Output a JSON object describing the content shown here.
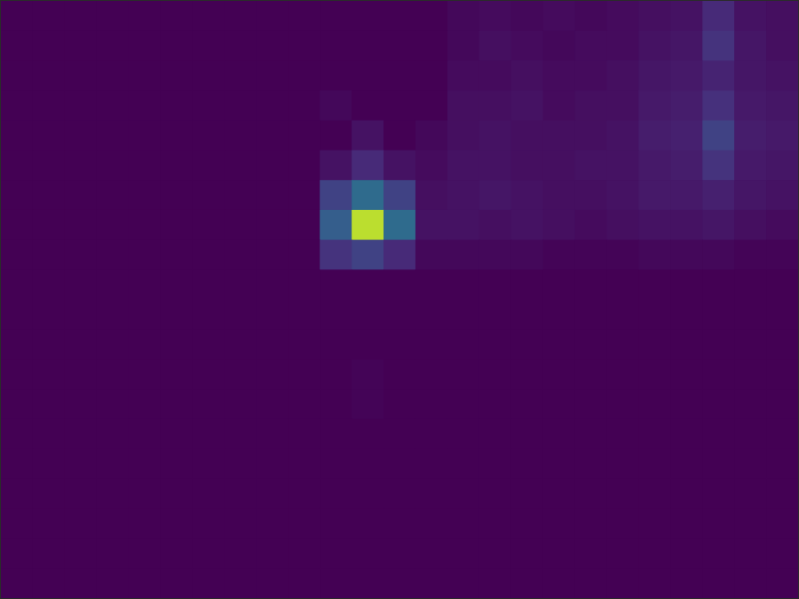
{
  "chart_data": {
    "type": "heatmap",
    "tick_labels": false,
    "zlim": [
      0,
      1
    ],
    "values": [
      [
        0,
        0,
        0,
        0,
        0,
        0,
        0,
        0,
        0,
        0,
        0,
        0,
        0,
        0,
        0.02,
        0.03,
        0.02,
        0.03,
        0.02,
        0.03,
        0.04,
        0.05,
        0.12,
        0.05,
        0.04
      ],
      [
        0,
        0,
        0,
        0,
        0,
        0,
        0,
        0,
        0,
        0,
        0,
        0,
        0,
        0,
        0.02,
        0.04,
        0.03,
        0.02,
        0.03,
        0.03,
        0.05,
        0.06,
        0.15,
        0.06,
        0.04
      ],
      [
        0,
        0,
        0,
        0,
        0,
        0,
        0,
        0,
        0,
        0,
        0,
        0,
        0,
        0,
        0.03,
        0.03,
        0.04,
        0.03,
        0.03,
        0.04,
        0.06,
        0.07,
        0.1,
        0.06,
        0.05
      ],
      [
        0,
        0,
        0,
        0,
        0,
        0,
        0,
        0,
        0,
        0,
        0.02,
        0,
        0,
        0,
        0.04,
        0.04,
        0.05,
        0.03,
        0.04,
        0.04,
        0.07,
        0.08,
        0.14,
        0.07,
        0.06
      ],
      [
        0,
        0,
        0,
        0,
        0,
        0,
        0,
        0,
        0,
        0,
        0,
        0.05,
        0,
        0.02,
        0.04,
        0.05,
        0.04,
        0.04,
        0.04,
        0.05,
        0.08,
        0.09,
        0.2,
        0.08,
        0.07
      ],
      [
        0,
        0,
        0,
        0,
        0,
        0,
        0,
        0,
        0,
        0,
        0.05,
        0.12,
        0.05,
        0.03,
        0.05,
        0.05,
        0.04,
        0.04,
        0.05,
        0.05,
        0.07,
        0.08,
        0.15,
        0.07,
        0.06
      ],
      [
        0,
        0,
        0,
        0,
        0,
        0,
        0,
        0,
        0,
        0,
        0.2,
        0.35,
        0.2,
        0.04,
        0.05,
        0.06,
        0.05,
        0.04,
        0.04,
        0.05,
        0.07,
        0.07,
        0.09,
        0.06,
        0.05
      ],
      [
        0,
        0,
        0,
        0,
        0,
        0,
        0,
        0,
        0,
        0,
        0.3,
        0.9,
        0.35,
        0.05,
        0.05,
        0.04,
        0.05,
        0.04,
        0.03,
        0.04,
        0.05,
        0.05,
        0.06,
        0.04,
        0.03
      ],
      [
        0,
        0,
        0,
        0,
        0,
        0,
        0,
        0,
        0,
        0,
        0.15,
        0.2,
        0.12,
        0.02,
        0.02,
        0.02,
        0.02,
        0.01,
        0.01,
        0.01,
        0.02,
        0.02,
        0.02,
        0.01,
        0.01
      ],
      [
        0,
        0,
        0,
        0,
        0,
        0,
        0,
        0,
        0,
        0,
        0,
        0,
        0,
        0,
        0,
        0,
        0,
        0,
        0,
        0,
        0,
        0,
        0,
        0,
        0
      ],
      [
        0,
        0,
        0,
        0,
        0,
        0,
        0,
        0,
        0,
        0,
        0,
        0,
        0,
        0,
        0,
        0,
        0,
        0,
        0,
        0,
        0,
        0,
        0,
        0,
        0
      ],
      [
        0,
        0,
        0,
        0,
        0,
        0,
        0,
        0,
        0,
        0,
        0,
        0,
        0,
        0,
        0,
        0,
        0,
        0,
        0,
        0,
        0,
        0,
        0,
        0,
        0
      ],
      [
        0,
        0,
        0,
        0,
        0,
        0,
        0,
        0,
        0,
        0,
        0,
        0.01,
        0,
        0,
        0,
        0,
        0,
        0,
        0,
        0,
        0,
        0,
        0,
        0,
        0
      ],
      [
        0,
        0,
        0,
        0,
        0,
        0,
        0,
        0,
        0,
        0,
        0,
        0.01,
        0,
        0,
        0,
        0,
        0,
        0,
        0,
        0,
        0,
        0,
        0,
        0,
        0
      ],
      [
        0,
        0,
        0,
        0,
        0,
        0,
        0,
        0,
        0,
        0,
        0,
        0,
        0,
        0,
        0,
        0,
        0,
        0,
        0,
        0,
        0,
        0,
        0,
        0,
        0
      ],
      [
        0,
        0,
        0,
        0,
        0,
        0,
        0,
        0,
        0,
        0,
        0,
        0,
        0,
        0,
        0,
        0,
        0,
        0,
        0,
        0,
        0,
        0,
        0,
        0,
        0
      ],
      [
        0,
        0,
        0,
        0,
        0,
        0,
        0,
        0,
        0,
        0,
        0,
        0,
        0,
        0,
        0,
        0,
        0,
        0,
        0,
        0,
        0,
        0,
        0,
        0,
        0
      ],
      [
        0,
        0,
        0,
        0,
        0,
        0,
        0,
        0,
        0,
        0,
        0,
        0,
        0,
        0,
        0,
        0,
        0,
        0,
        0,
        0,
        0,
        0,
        0,
        0,
        0
      ],
      [
        0,
        0,
        0,
        0,
        0,
        0,
        0,
        0,
        0,
        0,
        0,
        0,
        0,
        0,
        0,
        0,
        0,
        0,
        0,
        0,
        0,
        0,
        0,
        0,
        0
      ],
      [
        0,
        0,
        0,
        0,
        0,
        0,
        0,
        0,
        0,
        0,
        0,
        0,
        0,
        0,
        0,
        0,
        0,
        0,
        0,
        0,
        0,
        0,
        0,
        0,
        0
      ]
    ]
  }
}
